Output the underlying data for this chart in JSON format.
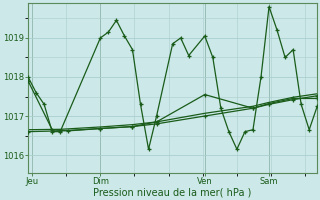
{
  "background_color": "#cce8e8",
  "grid_color": "#aacece",
  "line_color": "#1a5c1a",
  "marker_color": "#1a5c1a",
  "ylabel_ticks": [
    1016,
    1017,
    1018,
    1019
  ],
  "xlabel": "Pression niveau de la mer( hPa )",
  "day_labels": [
    "Jeu",
    "Dim",
    "Ven",
    "Sam"
  ],
  "day_positions": [
    0.5,
    9,
    22,
    30
  ],
  "vline_positions": [
    0.5,
    9,
    22,
    30
  ],
  "series1_x": [
    0,
    1,
    2,
    3,
    4,
    9,
    10,
    11,
    12,
    13,
    14,
    15,
    16,
    18,
    19,
    20,
    22,
    23,
    24,
    25,
    26,
    27,
    28,
    29,
    30,
    31,
    32,
    33,
    34,
    35,
    36
  ],
  "series1_y": [
    1018.0,
    1017.6,
    1017.3,
    1016.6,
    1016.6,
    1019.0,
    1019.15,
    1019.45,
    1019.05,
    1018.7,
    1017.3,
    1016.15,
    1017.0,
    1018.85,
    1019.0,
    1018.55,
    1019.05,
    1018.5,
    1017.2,
    1016.6,
    1016.15,
    1016.6,
    1016.65,
    1018.0,
    1019.8,
    1019.2,
    1018.5,
    1018.7,
    1017.3,
    1016.65,
    1017.25
  ],
  "series2_x": [
    0,
    4,
    9,
    13,
    16,
    22,
    28,
    30,
    33,
    36
  ],
  "series2_y": [
    1016.6,
    1016.62,
    1016.68,
    1016.73,
    1016.8,
    1017.0,
    1017.2,
    1017.3,
    1017.42,
    1017.52
  ],
  "series3_x": [
    0,
    4,
    9,
    13,
    16,
    22,
    28,
    30,
    33,
    36
  ],
  "series3_y": [
    1016.65,
    1016.66,
    1016.72,
    1016.78,
    1016.85,
    1017.07,
    1017.25,
    1017.35,
    1017.48,
    1017.57
  ],
  "series4_x": [
    0,
    3,
    5,
    9,
    13,
    16,
    22,
    28,
    30,
    33,
    36
  ],
  "series4_y": [
    1017.9,
    1016.65,
    1016.62,
    1016.68,
    1016.73,
    1016.85,
    1017.55,
    1017.2,
    1017.32,
    1017.45,
    1017.45
  ],
  "ylim": [
    1015.55,
    1019.9
  ],
  "xlim": [
    0,
    36
  ]
}
